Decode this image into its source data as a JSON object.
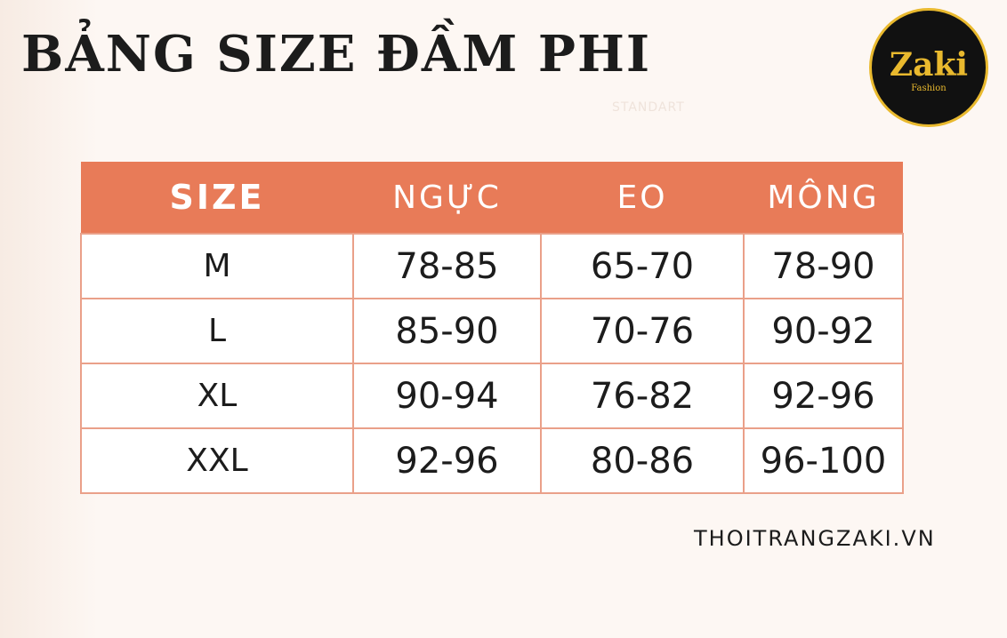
{
  "header": {
    "title": "BẢNG SIZE ĐẦM PHI",
    "watermark": "STANDART"
  },
  "logo": {
    "brand": "Zaki",
    "tagline": "Fashion"
  },
  "table": {
    "columns": [
      "SIZE",
      "NGỰC",
      "EO",
      "MÔNG"
    ],
    "rows": [
      [
        "M",
        "78-85",
        "65-70",
        "78-90"
      ],
      [
        "L",
        "85-90",
        "70-76",
        "90-92"
      ],
      [
        "XL",
        "90-94",
        "76-82",
        "92-96"
      ],
      [
        "XXL",
        "92-96",
        "80-86",
        "96-100"
      ]
    ]
  },
  "footer": {
    "website": "THOITRANGZAKI.VN"
  }
}
